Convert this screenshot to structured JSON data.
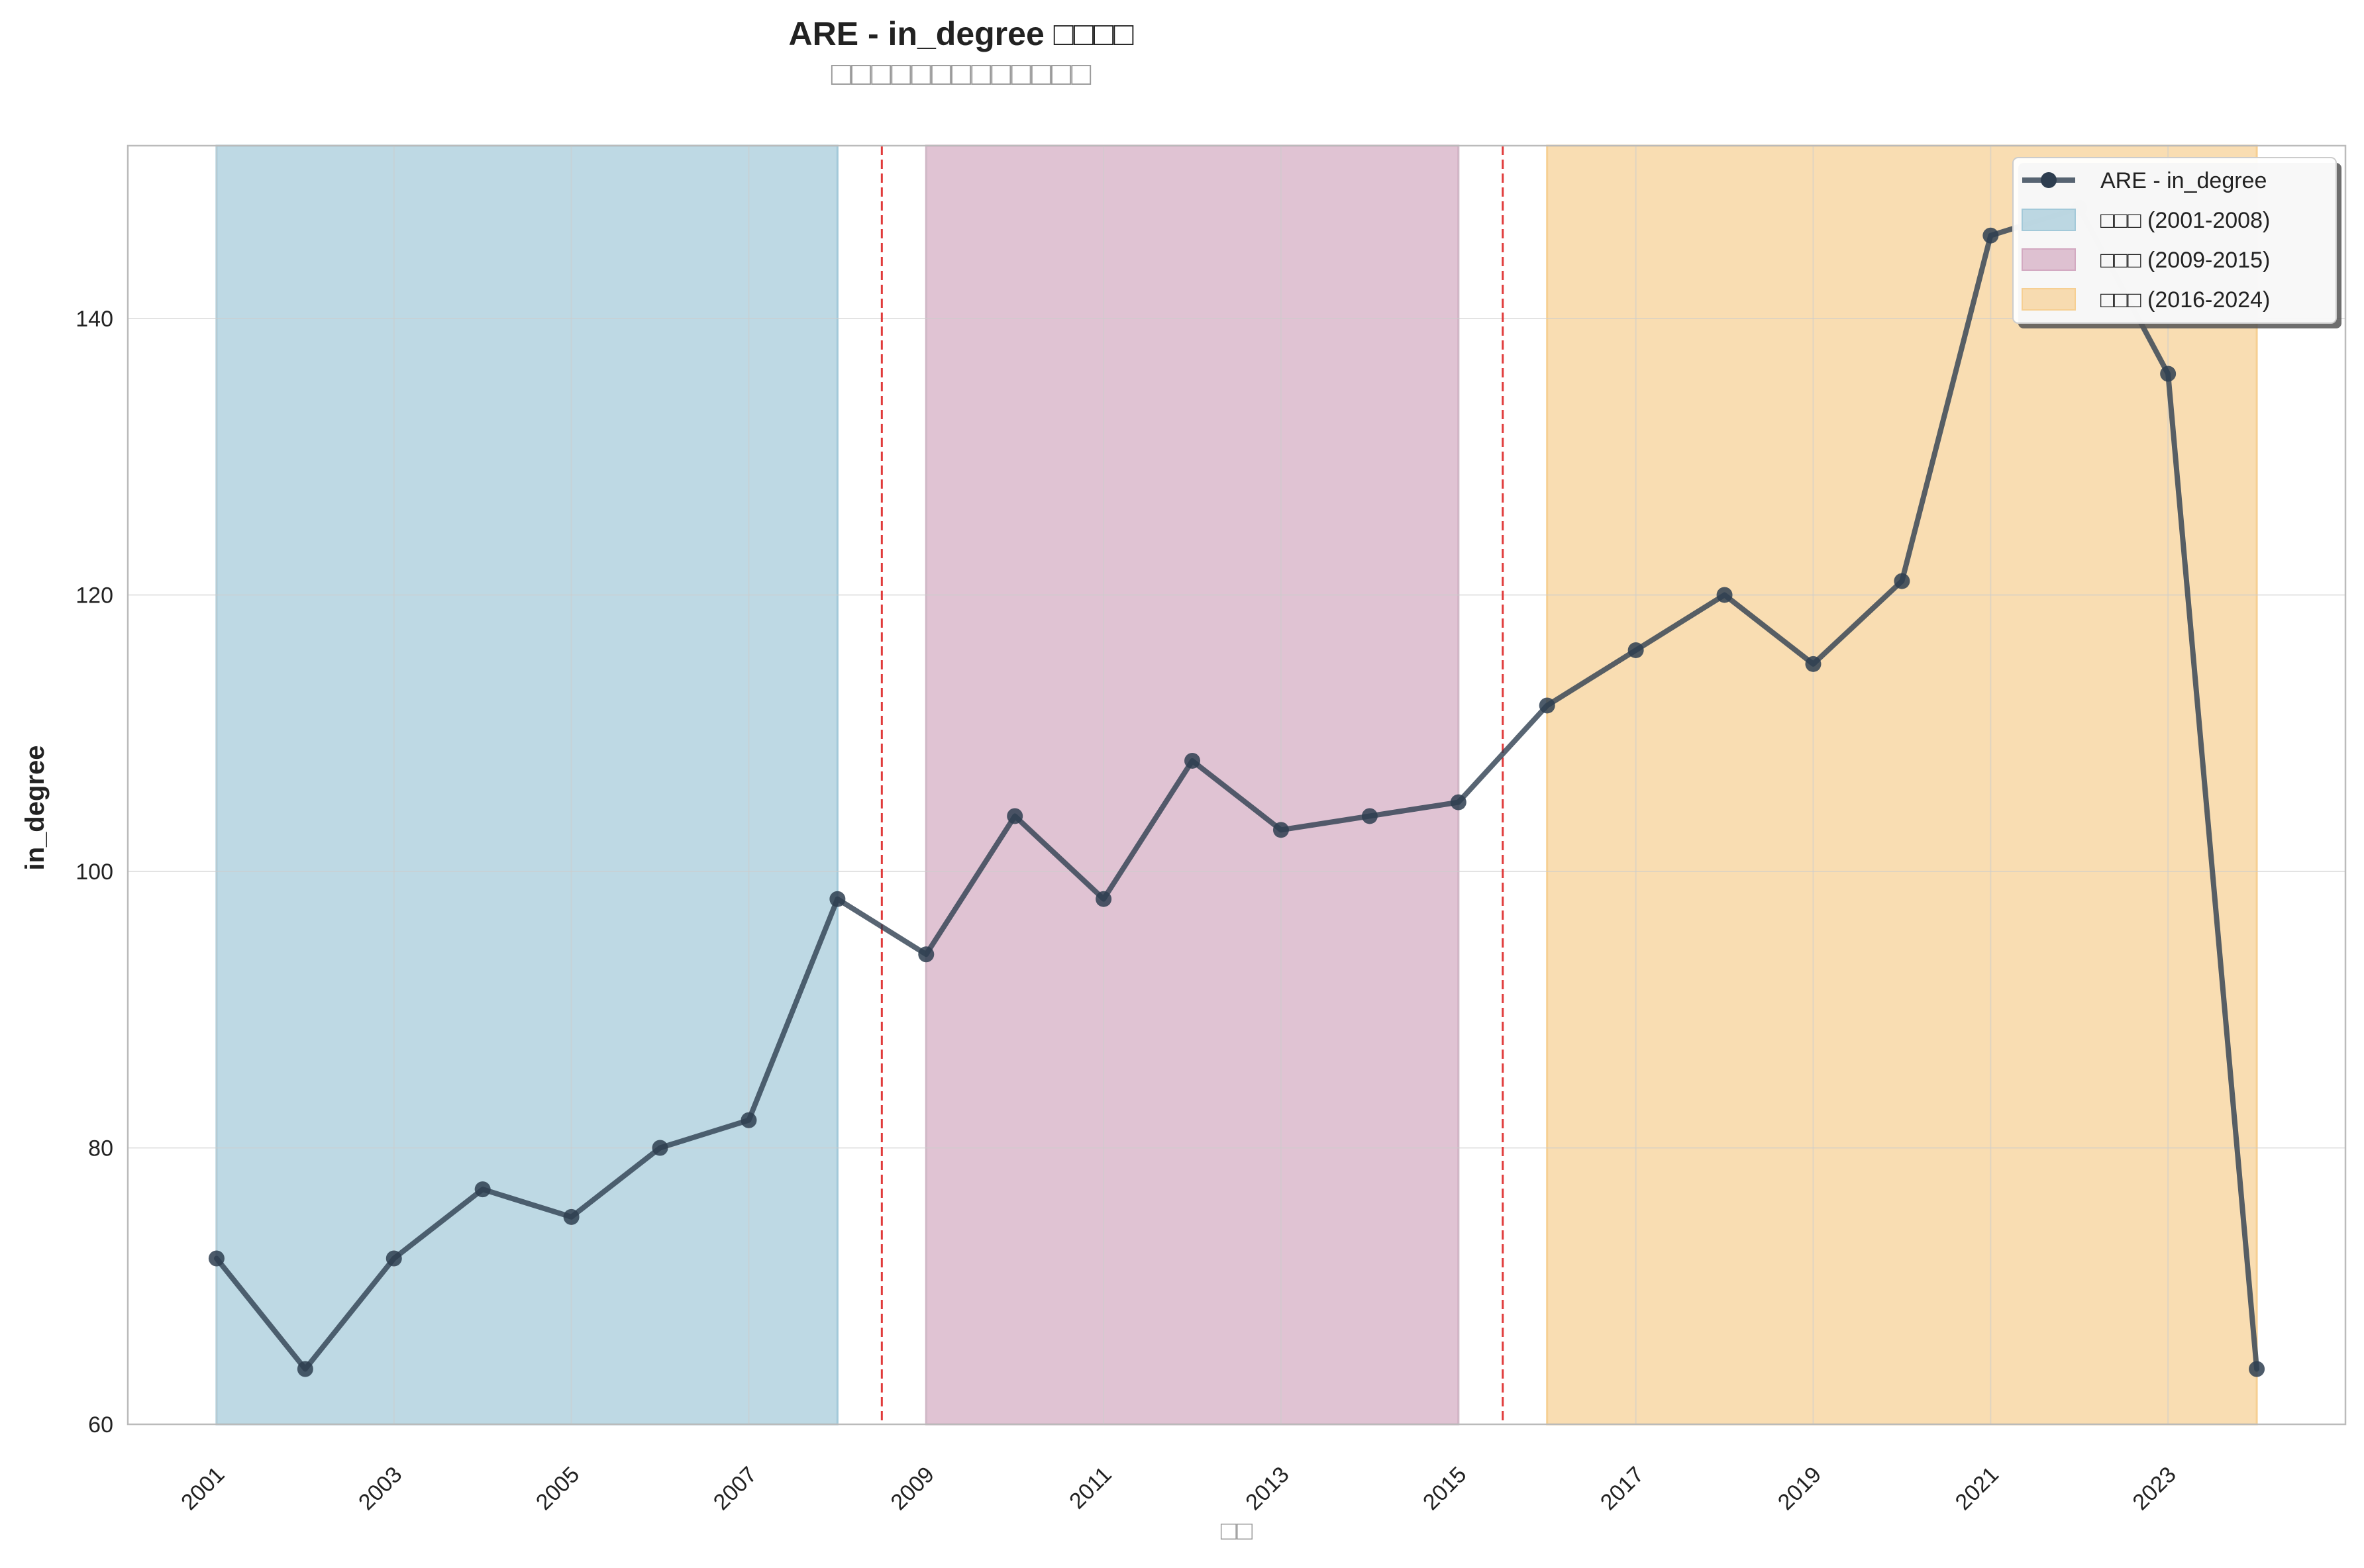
{
  "chart_data": {
    "type": "line",
    "title": "ARE - in_degree □□□□",
    "subtitle": "□□□□□□□□□□□□□",
    "xlabel": "□□",
    "ylabel": "in_degree",
    "x": [
      2001,
      2002,
      2003,
      2004,
      2005,
      2006,
      2007,
      2008,
      2009,
      2010,
      2011,
      2012,
      2013,
      2014,
      2015,
      2016,
      2017,
      2018,
      2019,
      2020,
      2021,
      2022,
      2023,
      2024
    ],
    "series": [
      {
        "name": "ARE - in_degree",
        "color": "#2e3e50",
        "values": [
          72,
          64,
          72,
          77,
          75,
          80,
          82,
          98,
          94,
          104,
          98,
          108,
          103,
          104,
          105,
          112,
          116,
          120,
          115,
          121,
          146,
          148,
          136,
          64
        ]
      }
    ],
    "xlim": [
      2000,
      2025
    ],
    "ylim": [
      60,
      152.5
    ],
    "xticks": [
      2001,
      2003,
      2005,
      2007,
      2009,
      2011,
      2013,
      2015,
      2017,
      2019,
      2021,
      2023
    ],
    "yticks": [
      60,
      80,
      100,
      120,
      140
    ],
    "periods": [
      {
        "label": "□□□ (2001-2008)",
        "start": 2001,
        "end": 2008,
        "color": "#a3c9d9"
      },
      {
        "label": "□□□ (2009-2015)",
        "start": 2009,
        "end": 2015,
        "color": "#d3a9c1"
      },
      {
        "label": "□□□ (2016-2024)",
        "start": 2016,
        "end": 2024,
        "color": "#f6cf92"
      }
    ],
    "breakpoints": [
      2008.5,
      2015.5
    ],
    "breakpoint_color": "#e03a3a",
    "grid": true,
    "legend_position": "top-right"
  }
}
